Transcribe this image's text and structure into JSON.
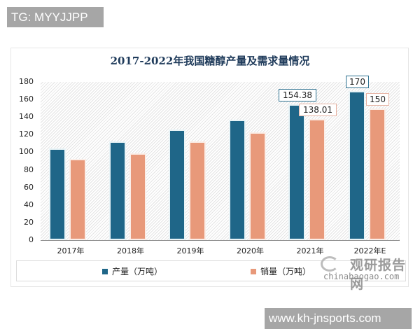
{
  "watermarks": {
    "top_tag": "TG: MYYJJPP",
    "bottom_tag": "www.kh-jnsports.com",
    "brand_cn": "观研报告网",
    "brand_en": "chinabaogao.com"
  },
  "colors": {
    "production": "#1f6688",
    "sales": "#e8997a",
    "title": "#1e3a5a"
  },
  "chart_data": {
    "type": "bar",
    "title": "2017-2022年我国糖醇产量及需求量情况",
    "xlabel": "",
    "ylabel": "",
    "categories": [
      "2017年",
      "2018年",
      "2019年",
      "2020年",
      "2021年",
      "2022年E"
    ],
    "series": [
      {
        "name": "产量（万吨）",
        "values": [
          104,
          112,
          126,
          137,
          154.38,
          170
        ]
      },
      {
        "name": "销量（万吨）",
        "values": [
          92,
          99,
          112,
          123,
          138.01,
          150
        ]
      }
    ],
    "data_labels": {
      "产量（万吨）": [
        null,
        null,
        null,
        null,
        "154.38",
        "170"
      ],
      "销量（万吨）": [
        null,
        null,
        null,
        null,
        "138.01",
        "150"
      ]
    },
    "ylim": [
      0,
      180
    ],
    "yticks": [
      "0",
      "20",
      "40",
      "60",
      "80",
      "100",
      "120",
      "140",
      "160",
      "180"
    ],
    "grid": false,
    "plot_background": "diagonal-hatch",
    "legend_position": "bottom"
  },
  "legend": {
    "items": [
      {
        "label": "产量（万吨）"
      },
      {
        "label": "销量（万吨）"
      }
    ]
  }
}
